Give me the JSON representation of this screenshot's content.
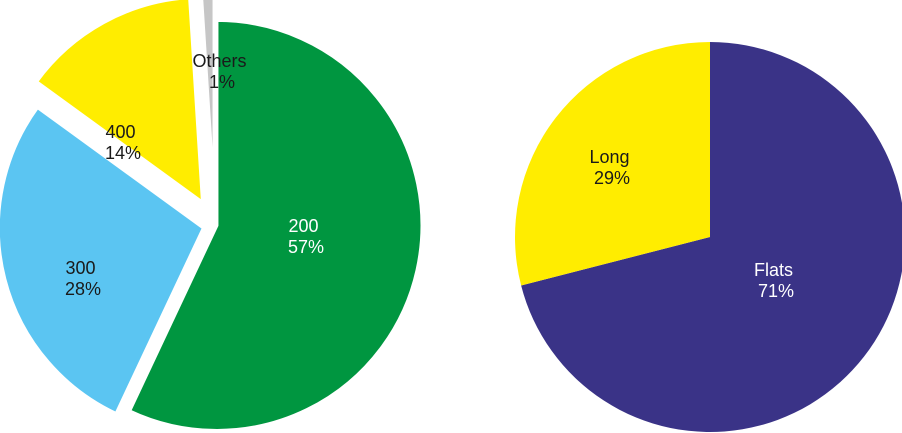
{
  "chart_data": [
    {
      "type": "pie",
      "slices": [
        {
          "label": "200",
          "value": 57,
          "pct_label": "57%",
          "color": "#009640",
          "text_color": "#ffffff"
        },
        {
          "label": "300",
          "value": 28,
          "pct_label": "28%",
          "color": "#5BC5F2",
          "text_color": "#1a1a1a"
        },
        {
          "label": "400",
          "value": 14,
          "pct_label": "14%",
          "color": "#FFED00",
          "text_color": "#1a1a1a"
        },
        {
          "label": "Others",
          "value": 1,
          "pct_label": "1%",
          "color": "#C6C6C6",
          "text_color": "#1a1a1a"
        }
      ],
      "exploded": true
    },
    {
      "type": "pie",
      "slices": [
        {
          "label": "Flats",
          "value": 71,
          "pct_label": "71%",
          "color": "#3A3387",
          "text_color": "#ffffff"
        },
        {
          "label": "Long",
          "value": 29,
          "pct_label": "29%",
          "color": "#FFED00",
          "text_color": "#1a1a1a"
        }
      ],
      "exploded": false
    }
  ]
}
